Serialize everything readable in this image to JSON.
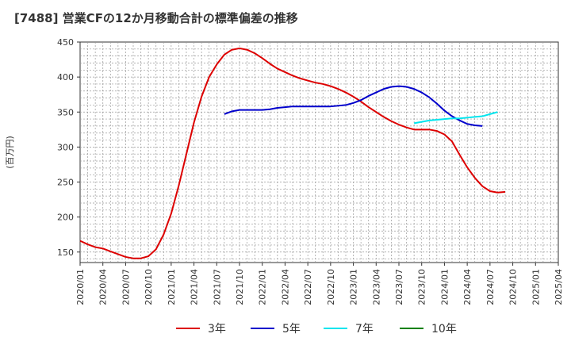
{
  "chart_data": {
    "type": "line",
    "title": "[7488]  営業CFの12か月移動合計の標準偏差の推移",
    "ylabel": "(百万円)",
    "xlabel": "",
    "ylim": [
      135,
      450
    ],
    "yticks": [
      150,
      200,
      250,
      300,
      350,
      400,
      450
    ],
    "xlim": [
      "2020-01",
      "2025-04"
    ],
    "xticks": [
      "2020/01",
      "2020/04",
      "2020/07",
      "2020/10",
      "2021/01",
      "2021/04",
      "2021/07",
      "2021/10",
      "2022/01",
      "2022/04",
      "2022/07",
      "2022/10",
      "2023/01",
      "2023/04",
      "2023/07",
      "2023/10",
      "2024/01",
      "2024/04",
      "2024/07",
      "2024/10",
      "2025/01",
      "2025/04"
    ],
    "grid": true,
    "legend_position": "bottom",
    "series": [
      {
        "name": "3年",
        "color": "#dd0000",
        "points": [
          [
            "2020-01",
            166
          ],
          [
            "2020-02",
            161
          ],
          [
            "2020-03",
            157
          ],
          [
            "2020-04",
            155
          ],
          [
            "2020-05",
            151
          ],
          [
            "2020-06",
            147
          ],
          [
            "2020-07",
            143
          ],
          [
            "2020-08",
            141
          ],
          [
            "2020-09",
            141
          ],
          [
            "2020-10",
            144
          ],
          [
            "2020-11",
            154
          ],
          [
            "2020-12",
            175
          ],
          [
            "2021-01",
            205
          ],
          [
            "2021-02",
            245
          ],
          [
            "2021-03",
            290
          ],
          [
            "2021-04",
            335
          ],
          [
            "2021-05",
            372
          ],
          [
            "2021-06",
            400
          ],
          [
            "2021-07",
            418
          ],
          [
            "2021-08",
            432
          ],
          [
            "2021-09",
            439
          ],
          [
            "2021-10",
            441
          ],
          [
            "2021-11",
            439
          ],
          [
            "2021-12",
            434
          ],
          [
            "2022-01",
            427
          ],
          [
            "2022-02",
            419
          ],
          [
            "2022-03",
            412
          ],
          [
            "2022-04",
            407
          ],
          [
            "2022-05",
            402
          ],
          [
            "2022-06",
            398
          ],
          [
            "2022-07",
            395
          ],
          [
            "2022-08",
            392
          ],
          [
            "2022-09",
            390
          ],
          [
            "2022-10",
            387
          ],
          [
            "2022-11",
            383
          ],
          [
            "2022-12",
            378
          ],
          [
            "2023-01",
            372
          ],
          [
            "2023-02",
            365
          ],
          [
            "2023-03",
            357
          ],
          [
            "2023-04",
            350
          ],
          [
            "2023-05",
            343
          ],
          [
            "2023-06",
            337
          ],
          [
            "2023-07",
            332
          ],
          [
            "2023-08",
            328
          ],
          [
            "2023-09",
            325
          ],
          [
            "2023-10",
            325
          ],
          [
            "2023-11",
            325
          ],
          [
            "2023-12",
            323
          ],
          [
            "2024-01",
            318
          ],
          [
            "2024-02",
            308
          ],
          [
            "2024-03",
            289
          ],
          [
            "2024-04",
            271
          ],
          [
            "2024-05",
            256
          ],
          [
            "2024-06",
            244
          ],
          [
            "2024-07",
            237
          ],
          [
            "2024-08",
            235
          ],
          [
            "2024-09",
            236
          ]
        ]
      },
      {
        "name": "5年",
        "color": "#0000cc",
        "points": [
          [
            "2021-08",
            347
          ],
          [
            "2021-09",
            351
          ],
          [
            "2021-10",
            353
          ],
          [
            "2021-11",
            353
          ],
          [
            "2021-12",
            353
          ],
          [
            "2022-01",
            353
          ],
          [
            "2022-02",
            354
          ],
          [
            "2022-03",
            356
          ],
          [
            "2022-04",
            357
          ],
          [
            "2022-05",
            358
          ],
          [
            "2022-06",
            358
          ],
          [
            "2022-07",
            358
          ],
          [
            "2022-08",
            358
          ],
          [
            "2022-09",
            358
          ],
          [
            "2022-10",
            358
          ],
          [
            "2022-11",
            359
          ],
          [
            "2022-12",
            360
          ],
          [
            "2023-01",
            363
          ],
          [
            "2023-02",
            367
          ],
          [
            "2023-03",
            373
          ],
          [
            "2023-04",
            378
          ],
          [
            "2023-05",
            383
          ],
          [
            "2023-06",
            386
          ],
          [
            "2023-07",
            387
          ],
          [
            "2023-08",
            386
          ],
          [
            "2023-09",
            383
          ],
          [
            "2023-10",
            378
          ],
          [
            "2023-11",
            371
          ],
          [
            "2023-12",
            362
          ],
          [
            "2024-01",
            352
          ],
          [
            "2024-02",
            344
          ],
          [
            "2024-03",
            338
          ],
          [
            "2024-04",
            333
          ],
          [
            "2024-05",
            331
          ],
          [
            "2024-06",
            330
          ]
        ]
      },
      {
        "name": "7年",
        "color": "#00e5ee",
        "points": [
          [
            "2023-09",
            334
          ],
          [
            "2023-10",
            336
          ],
          [
            "2023-11",
            338
          ],
          [
            "2023-12",
            339
          ],
          [
            "2024-01",
            340
          ],
          [
            "2024-02",
            341
          ],
          [
            "2024-03",
            341
          ],
          [
            "2024-04",
            342
          ],
          [
            "2024-05",
            343
          ],
          [
            "2024-06",
            344
          ],
          [
            "2024-07",
            347
          ],
          [
            "2024-08",
            350
          ]
        ]
      },
      {
        "name": "10年",
        "color": "#008000",
        "points": []
      }
    ]
  }
}
